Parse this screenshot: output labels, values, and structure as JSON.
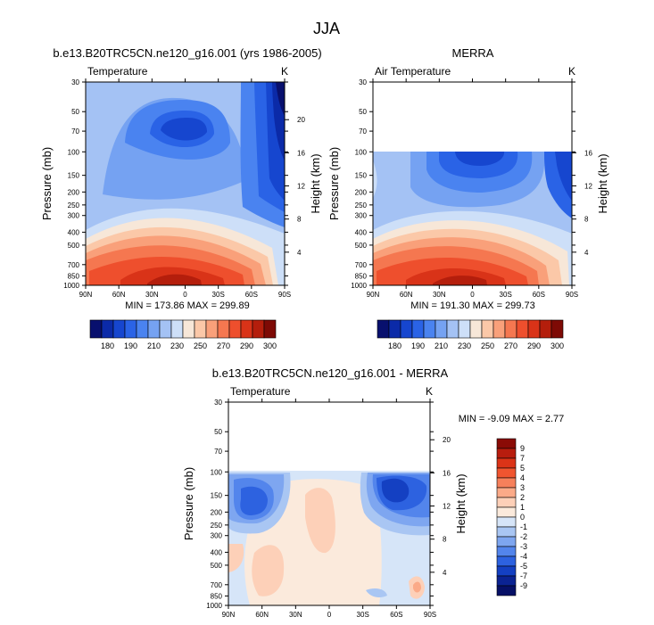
{
  "title": "JJA",
  "chart_data": [
    {
      "type": "contour",
      "title": "b.e13.B20TRC5CN.ne120_g16.001 (yrs 1986-2005)",
      "left_label": "Temperature",
      "right_label": "K",
      "ylabel": "Pressure (mb)",
      "ylabel_right": "Height (km)",
      "pressure_ticks": [
        30,
        50,
        70,
        100,
        150,
        200,
        250,
        300,
        400,
        500,
        700,
        850,
        1000
      ],
      "height_ticks": [
        4,
        8,
        12,
        16,
        20
      ],
      "lat_ticks": [
        "90N",
        "60N",
        "30N",
        "0",
        "30S",
        "60S",
        "90S"
      ],
      "stats": "MIN = 173.86  MAX = 299.89",
      "data_top_mb": 30,
      "field": "model"
    },
    {
      "type": "contour",
      "title": "MERRA",
      "left_label": "Air Temperature",
      "right_label": "K",
      "ylabel": "Pressure (mb)",
      "ylabel_right": "Height (km)",
      "pressure_ticks": [
        30,
        50,
        70,
        100,
        150,
        200,
        250,
        300,
        400,
        500,
        700,
        850,
        1000
      ],
      "height_ticks": [
        4,
        8,
        12,
        16
      ],
      "lat_ticks": [
        "90N",
        "60N",
        "30N",
        "0",
        "30S",
        "60S",
        "90S"
      ],
      "stats": "MIN = 191.30  MAX = 299.73",
      "data_top_mb": 100,
      "field": "obs"
    },
    {
      "type": "contour",
      "title": "b.e13.B20TRC5CN.ne120_g16.001 - MERRA",
      "left_label": "Temperature",
      "right_label": "K",
      "ylabel": "Pressure (mb)",
      "ylabel_right": "Height (km)",
      "pressure_ticks": [
        30,
        50,
        70,
        100,
        150,
        200,
        250,
        300,
        400,
        500,
        700,
        850,
        1000
      ],
      "height_ticks": [
        4,
        8,
        12,
        16,
        20
      ],
      "lat_ticks": [
        "90N",
        "60N",
        "30N",
        "0",
        "30S",
        "60S",
        "90S"
      ],
      "stats": "MIN = -9.09  MAX =  2.77",
      "data_top_mb": 100,
      "field": "diff"
    }
  ],
  "colorbar_abs": {
    "labels": [
      "180",
      "190",
      "210",
      "230",
      "250",
      "270",
      "290",
      "300"
    ],
    "colors": [
      "#08106e",
      "#0b2aa8",
      "#1646cf",
      "#2a63e6",
      "#4a83f0",
      "#75a2f2",
      "#a4c2f4",
      "#cddff8",
      "#f7e7d8",
      "#fbc8a8",
      "#f9a07a",
      "#f57750",
      "#ee4f2d",
      "#d93318",
      "#b41e0c",
      "#7e0a05"
    ]
  },
  "colorbar_diff": {
    "labels": [
      "9",
      "7",
      "5",
      "4",
      "3",
      "2",
      "1",
      "0",
      "-1",
      "-2",
      "-3",
      "-4",
      "-5",
      "-7",
      "-9"
    ],
    "colors": [
      "#8a0b06",
      "#b81d0e",
      "#db3418",
      "#f05530",
      "#f6805b",
      "#fbaa88",
      "#fdd0b8",
      "#fbeadc",
      "#d6e5f8",
      "#a9c6f3",
      "#7ea6f0",
      "#5385ec",
      "#2d62e0",
      "#1440c2",
      "#0b2392",
      "#061066"
    ]
  }
}
